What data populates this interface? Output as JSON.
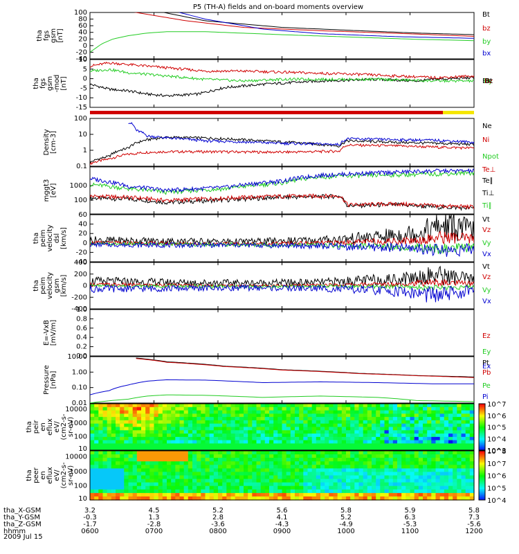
{
  "title": "P5 (TH-A) fields and on-board moments overview",
  "date": "2009 Jul 15",
  "colors": {
    "black": "#000000",
    "red": "#d00000",
    "green": "#22cc22",
    "blue": "#0000d0",
    "yellow": "#f5e600"
  },
  "chart_data": [
    {
      "type": "line",
      "id": "fgs",
      "ylabel": [
        "tha",
        "fgs",
        "gsm",
        "[nT]"
      ],
      "ylim": [
        -40,
        100
      ],
      "yticks": [
        "100",
        "80",
        "60",
        "40",
        "20",
        "0",
        "-20",
        "-40"
      ],
      "series": [
        {
          "name": "Bt",
          "color": "black",
          "t": [
            0.03,
            0.15,
            0.3,
            0.5,
            0.7,
            0.85,
            1.0
          ],
          "v": [
            120,
            110,
            75,
            55,
            45,
            38,
            33
          ]
        },
        {
          "name": "bz",
          "color": "red",
          "t": [
            0.03,
            0.12,
            0.25,
            0.4,
            0.6,
            0.8,
            1.0
          ],
          "v": [
            115,
            100,
            75,
            55,
            45,
            37,
            28
          ]
        },
        {
          "name": "by",
          "color": "green",
          "t": [
            0.0,
            0.03,
            0.06,
            0.1,
            0.15,
            0.2,
            0.3,
            0.5,
            0.7,
            0.85,
            1.0
          ],
          "v": [
            -20,
            5,
            20,
            30,
            38,
            42,
            42,
            33,
            25,
            19,
            15
          ]
        },
        {
          "name": "bx",
          "color": "blue",
          "t": [
            0.2,
            0.3,
            0.45,
            0.6,
            0.8,
            1.0
          ],
          "v": [
            110,
            80,
            50,
            36,
            27,
            22
          ]
        }
      ]
    },
    {
      "type": "line",
      "id": "fgs-detrended",
      "ylabel": [
        "tha",
        "fgs",
        "gsm",
        "-mod",
        "[nT]"
      ],
      "ylim": [
        -17,
        12
      ],
      "yticks": [
        "10",
        "5",
        "0",
        "-5",
        "-10",
        "-15"
      ],
      "legend": [
        "Bx",
        "By",
        "Bz",
        "Bt"
      ],
      "series": [
        {
          "name": "Bt",
          "color": "black",
          "t": [
            0.0,
            0.05,
            0.1,
            0.15,
            0.2,
            0.28,
            0.35,
            0.45,
            0.6,
            0.75,
            0.85,
            0.9,
            1.0
          ],
          "v": [
            -3,
            -6,
            -7,
            -9,
            -10,
            -9,
            -5,
            -3,
            -1,
            0,
            -1,
            0,
            1
          ]
        },
        {
          "name": "Bz",
          "color": "red",
          "t": [
            0.0,
            0.05,
            0.1,
            0.2,
            0.3,
            0.4,
            0.55,
            0.7,
            0.8,
            0.9,
            1.0
          ],
          "v": [
            8,
            10,
            9,
            7,
            5,
            5,
            4,
            3,
            2,
            1,
            2
          ]
        },
        {
          "name": "By",
          "color": "green",
          "t": [
            0.0,
            0.05,
            0.1,
            0.2,
            0.3,
            0.4,
            0.5,
            0.6,
            0.75,
            0.9,
            1.0
          ],
          "v": [
            5,
            6,
            4,
            2,
            0,
            -1,
            0,
            0,
            0,
            -1,
            -1
          ]
        }
      ]
    },
    {
      "type": "line",
      "id": "density",
      "ylabel": [
        "Density",
        "[cm-3]"
      ],
      "ylim": [
        0.03,
        300
      ],
      "scale": "log",
      "yticks": [
        "100",
        "10",
        "1",
        "0.1"
      ],
      "series": [
        {
          "name": "Ne",
          "color": "red",
          "t": [
            0.0,
            0.05,
            0.1,
            0.15,
            0.2,
            0.3,
            0.5,
            0.65,
            0.67,
            0.8,
            0.9,
            1.0
          ],
          "v": [
            0.05,
            0.12,
            0.3,
            0.45,
            0.5,
            0.5,
            0.45,
            0.55,
            1.8,
            1.5,
            1.2,
            1.0
          ]
        },
        {
          "name": "Ni",
          "color": "black",
          "t": [
            0.0,
            0.05,
            0.1,
            0.15,
            0.2,
            0.3,
            0.45,
            0.6,
            0.65,
            0.67,
            0.8,
            0.9,
            1.0
          ],
          "v": [
            0.06,
            0.2,
            1.0,
            5.0,
            8.0,
            7.0,
            4.0,
            2.0,
            1.5,
            4.0,
            3.0,
            2.5,
            2.0
          ]
        },
        {
          "name": "Npot",
          "color": "blue",
          "t": [
            0.1,
            0.11,
            0.12,
            0.15,
            0.2,
            0.3,
            0.5,
            0.65,
            0.67,
            0.8,
            0.9,
            1.0
          ],
          "v": [
            150,
            100,
            30,
            10,
            7,
            4,
            2.5,
            2.0,
            6.0,
            5.0,
            4.5,
            3.0
          ]
        }
      ]
    },
    {
      "type": "line",
      "id": "temperature",
      "ylabel": [
        "mggt3",
        "[eV]"
      ],
      "ylim": [
        30,
        8000
      ],
      "scale": "log",
      "yticks": [
        "1000",
        "1000",
        "100"
      ],
      "legend": [
        "Te⊥",
        "Te∥",
        "Ti⊥",
        "Ti∥"
      ],
      "series": [
        {
          "name": "Te∥",
          "color": "black",
          "t": [
            0.0,
            0.1,
            0.2,
            0.35,
            0.5,
            0.65,
            0.67,
            0.8,
            0.9,
            1.0
          ],
          "v": [
            200,
            180,
            120,
            160,
            220,
            250,
            80,
            90,
            70,
            60
          ]
        },
        {
          "name": "Ti⊥",
          "color": "red",
          "t": [
            0.0,
            0.1,
            0.2,
            0.35,
            0.5,
            0.65,
            0.67,
            0.8,
            0.9,
            1.0
          ],
          "v": [
            250,
            220,
            150,
            200,
            250,
            260,
            90,
            100,
            80,
            70
          ]
        },
        {
          "name": "Ti∥",
          "color": "green",
          "t": [
            0.0,
            0.1,
            0.2,
            0.35,
            0.5,
            0.6,
            0.75,
            0.9,
            1.0
          ],
          "v": [
            1000,
            600,
            400,
            600,
            1200,
            2500,
            3000,
            3500,
            4000
          ]
        },
        {
          "name": "Te⊥",
          "color": "blue",
          "t": [
            0.0,
            0.1,
            0.2,
            0.35,
            0.5,
            0.6,
            0.75,
            0.9,
            1.0
          ],
          "v": [
            2000,
            800,
            500,
            700,
            1500,
            3000,
            4000,
            5000,
            5000
          ]
        }
      ]
    },
    {
      "type": "line",
      "id": "velocity-dsl",
      "ylabel": [
        "tha",
        "peim",
        "velocity",
        "dsl",
        "[km/s]"
      ],
      "ylim": [
        -40,
        65
      ],
      "yticks": [
        "60",
        "40",
        "20",
        "0",
        "-20",
        "-40"
      ],
      "legend": [
        "Vt",
        "Vz",
        "Vy",
        "Vx"
      ],
      "series": [
        {
          "name": "Vt",
          "color": "black",
          "t": [
            0.0,
            0.2,
            0.4,
            0.6,
            0.75,
            0.85,
            0.92,
            1.0
          ],
          "v": [
            8,
            6,
            5,
            8,
            15,
            25,
            40,
            30
          ]
        },
        {
          "name": "Vz",
          "color": "red",
          "t": [
            0.0,
            0.2,
            0.4,
            0.6,
            0.75,
            0.85,
            0.92,
            1.0
          ],
          "v": [
            2,
            1,
            0,
            2,
            5,
            8,
            15,
            10
          ]
        },
        {
          "name": "Vy",
          "color": "green",
          "t": [
            0.0,
            0.2,
            0.4,
            0.6,
            0.75,
            0.85,
            0.92,
            1.0
          ],
          "v": [
            0,
            -1,
            -2,
            -3,
            -5,
            -8,
            -12,
            -8
          ]
        },
        {
          "name": "Vx",
          "color": "blue",
          "t": [
            0.0,
            0.2,
            0.4,
            0.6,
            0.75,
            0.85,
            0.92,
            1.0
          ],
          "v": [
            -2,
            -3,
            -3,
            -5,
            -8,
            -10,
            -15,
            -12
          ]
        }
      ]
    },
    {
      "type": "line",
      "id": "velocity-gsm",
      "ylabel": [
        "tha",
        "peim",
        "velocity",
        "gsm",
        "[km/s]"
      ],
      "ylim": [
        -420,
        420
      ],
      "yticks": [
        "400",
        "200",
        "0",
        "-200",
        "-400"
      ],
      "legend": [
        "Vt",
        "Vz",
        "Vy",
        "Vx"
      ],
      "series": [
        {
          "name": "Vt",
          "color": "black",
          "t": [
            0.0,
            0.2,
            0.4,
            0.6,
            0.8,
            0.9,
            1.0
          ],
          "v": [
            80,
            60,
            50,
            60,
            120,
            200,
            100
          ]
        },
        {
          "name": "Vz",
          "color": "red",
          "t": [
            0.0,
            0.2,
            0.4,
            0.6,
            0.8,
            0.9,
            1.0
          ],
          "v": [
            20,
            10,
            0,
            10,
            30,
            60,
            30
          ]
        },
        {
          "name": "Vy",
          "color": "green",
          "t": [
            0.0,
            0.2,
            0.4,
            0.6,
            0.8,
            0.9,
            1.0
          ],
          "v": [
            0,
            -10,
            -20,
            -10,
            -20,
            -40,
            -20
          ]
        },
        {
          "name": "Vx",
          "color": "blue",
          "t": [
            0.0,
            0.2,
            0.4,
            0.6,
            0.8,
            0.9,
            1.0
          ],
          "v": [
            -60,
            -50,
            -40,
            -50,
            -100,
            -180,
            -90
          ]
        }
      ]
    },
    {
      "type": "line",
      "id": "efield",
      "ylabel": [
        "E=-VxB",
        "[mV/m]"
      ],
      "ylim": [
        0,
        1
      ],
      "yticks": [
        "1.0",
        "0.8",
        "0.6",
        "0.4",
        "0.2",
        "0.0"
      ],
      "legend": [
        "Ez",
        "Ey",
        "Ex"
      ],
      "series": []
    },
    {
      "type": "line",
      "id": "pressure",
      "ylabel": [
        "Pressure",
        "[nPa]"
      ],
      "ylim": [
        0.008,
        15
      ],
      "scale": "log",
      "yticks": [
        "10.00",
        "1.00",
        "0.10",
        "0.01"
      ],
      "legend": [
        "Pt",
        "Pb",
        "Pe",
        "Pi"
      ],
      "series": [
        {
          "name": "Pt",
          "color": "black",
          "t": [
            0.12,
            0.2,
            0.35,
            0.5,
            0.7,
            0.85,
            1.0
          ],
          "v": [
            12,
            6.5,
            3.2,
            1.8,
            1.0,
            0.7,
            0.55
          ]
        },
        {
          "name": "Pb",
          "color": "red",
          "t": [
            0.12,
            0.2,
            0.35,
            0.5,
            0.7,
            0.85,
            1.0
          ],
          "v": [
            11,
            6,
            3.0,
            1.7,
            0.95,
            0.68,
            0.5
          ]
        },
        {
          "name": "Pi",
          "color": "blue",
          "t": [
            0.0,
            0.05,
            0.1,
            0.15,
            0.2,
            0.3,
            0.45,
            0.6,
            0.75,
            0.9,
            1.0
          ],
          "v": [
            0.03,
            0.06,
            0.15,
            0.28,
            0.35,
            0.33,
            0.22,
            0.25,
            0.22,
            0.18,
            0.18
          ]
        },
        {
          "name": "Pe",
          "color": "green",
          "t": [
            0.0,
            0.1,
            0.15,
            0.2,
            0.3,
            0.45,
            0.6,
            0.75,
            0.85,
            1.0
          ],
          "v": [
            0.008,
            0.015,
            0.025,
            0.03,
            0.028,
            0.02,
            0.025,
            0.02,
            0.012,
            0.01
          ]
        }
      ]
    },
    {
      "type": "heatmap",
      "id": "ion-spectrogram",
      "ylabel": [
        "tha",
        "peir",
        "en",
        "eflux",
        "eV/",
        "(cm2-s-",
        "sr-eV)"
      ],
      "ylim": [
        10,
        20000
      ],
      "scale": "log",
      "yticks": [
        "10000",
        "1000",
        "100",
        "10"
      ],
      "colorbar": {
        "min_exp": 3,
        "max_exp": 7,
        "ticks": [
          "10^7",
          "10^6",
          "10^5",
          "10^4",
          "10^3"
        ]
      }
    },
    {
      "type": "heatmap",
      "id": "electron-spectrogram",
      "ylabel": [
        "tha",
        "peer",
        "en",
        "eflux",
        "eV/",
        "(cm2-s-",
        "sr-eV)"
      ],
      "ylim": [
        8,
        20000
      ],
      "scale": "log",
      "yticks": [
        "10000",
        "1000",
        "100",
        "10"
      ],
      "colorbar": {
        "min_exp": 4,
        "max_exp": 8,
        "ticks": [
          "10^8",
          "10^7",
          "10^6",
          "10^5",
          "10^4"
        ]
      }
    }
  ],
  "xaxis": {
    "rows": [
      {
        "label": "tha_X-GSM",
        "values": [
          "3.2",
          "4.5",
          "5.2",
          "5.6",
          "5.8",
          "5.9",
          "5.8"
        ]
      },
      {
        "label": "tha_Y-GSM",
        "values": [
          "-0.3",
          "1.3",
          "2.8",
          "4.1",
          "5.2",
          "6.3",
          "7.3"
        ]
      },
      {
        "label": "tha_Z-GSM",
        "values": [
          "-1.7",
          "-2.8",
          "-3.6",
          "-4.3",
          "-4.9",
          "-5.3",
          "-5.6"
        ]
      },
      {
        "label": "hhmm",
        "values": [
          "0600",
          "0700",
          "0800",
          "0900",
          "1000",
          "1100",
          "1200"
        ]
      }
    ]
  }
}
